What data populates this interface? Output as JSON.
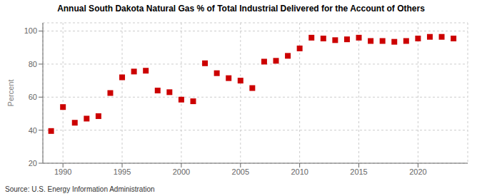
{
  "chart_data": {
    "type": "scatter",
    "title": "Annual South Dakota Natural Gas % of Total Industrial Delivered for the Account of Others",
    "ylabel": "Percent",
    "source": "Source: U.S. Energy Information Administration",
    "x": [
      1989,
      1990,
      1991,
      1992,
      1993,
      1994,
      1995,
      1996,
      1997,
      1998,
      1999,
      2000,
      2001,
      2002,
      2003,
      2004,
      2005,
      2006,
      2007,
      2008,
      2009,
      2010,
      2011,
      2012,
      2013,
      2014,
      2015,
      2016,
      2017,
      2018,
      2019,
      2020,
      2021,
      2022,
      2023
    ],
    "values": [
      39.5,
      54.0,
      44.5,
      47.0,
      48.5,
      62.5,
      72.0,
      75.5,
      76.0,
      64.0,
      63.0,
      58.5,
      57.5,
      80.5,
      74.5,
      71.5,
      70.0,
      65.5,
      81.5,
      82.0,
      85.0,
      89.5,
      96.0,
      95.5,
      94.5,
      95.0,
      96.0,
      94.0,
      94.0,
      93.5,
      94.0,
      95.5,
      96.5,
      96.5,
      95.5
    ],
    "color": "#cc0000",
    "marker": "square",
    "xlim": [
      1988.3,
      2024.2
    ],
    "ylim": [
      20,
      105
    ],
    "xticks": [
      1990,
      1995,
      2000,
      2005,
      2010,
      2015,
      2020
    ],
    "yticks": [
      20,
      40,
      60,
      80,
      100
    ],
    "grid": true
  }
}
